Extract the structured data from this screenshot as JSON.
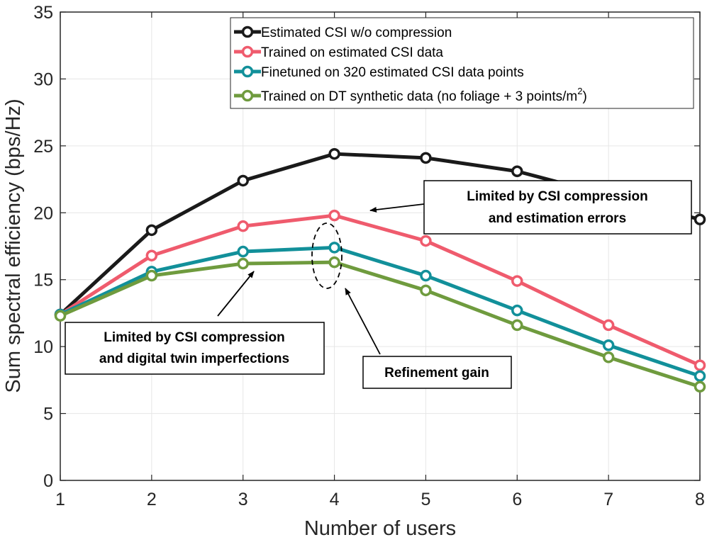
{
  "chart_data": {
    "type": "line",
    "xlabel": "Number of users",
    "ylabel": "Sum spectral efficiency (bps/Hz)",
    "xlim": [
      1,
      8
    ],
    "ylim": [
      0,
      35
    ],
    "xticks": [
      1,
      2,
      3,
      4,
      5,
      6,
      7,
      8
    ],
    "yticks": [
      0,
      5,
      10,
      15,
      20,
      25,
      30,
      35
    ],
    "grid": true,
    "legend_position": "top-right",
    "x": [
      1,
      2,
      3,
      4,
      5,
      6,
      7,
      8
    ],
    "series": [
      {
        "name": "Estimated CSI w/o compression",
        "color": "#1a1a1a",
        "values": [
          12.4,
          18.7,
          22.4,
          24.4,
          24.1,
          23.1,
          21.3,
          19.5
        ]
      },
      {
        "name": "Trained on estimated CSI data",
        "color": "#ef5b6d",
        "values": [
          12.4,
          16.8,
          19.0,
          19.8,
          17.9,
          14.9,
          11.6,
          8.6
        ]
      },
      {
        "name": "Finetuned on 320 estimated CSI data points",
        "color": "#12909a",
        "values": [
          12.4,
          15.6,
          17.1,
          17.4,
          15.3,
          12.7,
          10.1,
          7.8
        ]
      },
      {
        "name": "Trained on DT synthetic data (no foliage + 3 points/m",
        "name_superscript": "2",
        "name_suffix": ")",
        "color": "#6f9b3e",
        "values": [
          12.3,
          15.3,
          16.2,
          16.3,
          14.2,
          11.6,
          9.2,
          7.0
        ]
      }
    ],
    "annotations": [
      {
        "id": "compression-estimation",
        "lines": [
          "Limited by CSI compression",
          "and estimation errors"
        ]
      },
      {
        "id": "compression-dt",
        "lines": [
          "Limited by CSI compression",
          "and digital twin imperfections"
        ]
      },
      {
        "id": "refinement",
        "lines": [
          "Refinement gain"
        ]
      }
    ]
  }
}
